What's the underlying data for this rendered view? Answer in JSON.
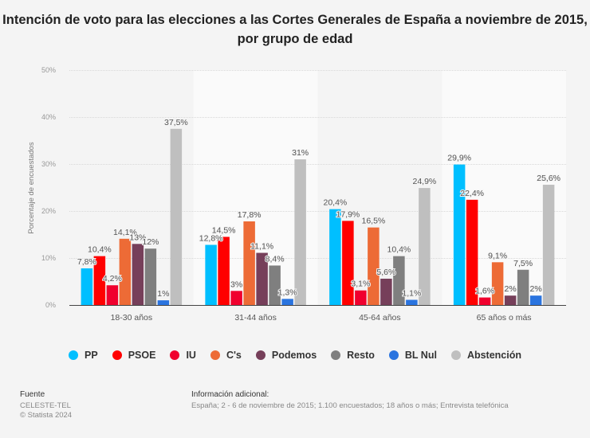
{
  "title": "Intención de voto para las elecciones a las Cortes Generales de España a noviembre de 2015, por grupo de edad",
  "chart_data": {
    "type": "bar",
    "title": "Intención de voto para las elecciones a las Cortes Generales de España a noviembre de 2015, por grupo de edad",
    "xlabel": "",
    "ylabel": "Porcentaje de encuestados",
    "ylim": [
      0,
      50
    ],
    "yticks": [
      0,
      10,
      20,
      30,
      40,
      50
    ],
    "ytick_labels": [
      "0%",
      "10%",
      "20%",
      "30%",
      "40%",
      "50%"
    ],
    "grid": true,
    "legend_position": "bottom",
    "categories": [
      "18-30 años",
      "31-44 años",
      "45-64 años",
      "65 años o más"
    ],
    "series": [
      {
        "name": "PP",
        "color": "#00bfff",
        "values": [
          7.8,
          12.8,
          20.4,
          29.9
        ],
        "labels": [
          "7,8%",
          "12,8%",
          "20,4%",
          "29,9%"
        ]
      },
      {
        "name": "PSOE",
        "color": "#ff0000",
        "values": [
          10.4,
          14.5,
          17.9,
          22.4
        ],
        "labels": [
          "10,4%",
          "14,5%",
          "17,9%",
          "22,4%"
        ]
      },
      {
        "name": "IU",
        "color": "#f0002e",
        "values": [
          4.2,
          3,
          3.1,
          1.6
        ],
        "labels": [
          "4,2%",
          "3%",
          "3,1%",
          "1,6%"
        ]
      },
      {
        "name": "C's",
        "color": "#ed6b36",
        "values": [
          14.1,
          17.8,
          16.5,
          9.1
        ],
        "labels": [
          "14,1%",
          "17,8%",
          "16,5%",
          "9,1%"
        ]
      },
      {
        "name": "Podemos",
        "color": "#763f5a",
        "values": [
          13,
          11.1,
          5.6,
          2
        ],
        "labels": [
          "13%",
          "11,1%",
          "5,6%",
          "2%"
        ]
      },
      {
        "name": "Resto",
        "color": "#7f7f7f",
        "values": [
          12,
          8.4,
          10.4,
          7.5
        ],
        "labels": [
          "12%",
          "8,4%",
          "10,4%",
          "7,5%"
        ]
      },
      {
        "name": "BL Nul",
        "color": "#2a74df",
        "values": [
          1,
          1.3,
          1.1,
          2
        ],
        "labels": [
          "1%",
          "1,3%",
          "1,1%",
          "2%"
        ]
      },
      {
        "name": "Abstención",
        "color": "#bfbfbf",
        "values": [
          37.5,
          31,
          24.9,
          25.6
        ],
        "labels": [
          "37,5%",
          "31%",
          "24,9%",
          "25,6%"
        ]
      }
    ]
  },
  "footer": {
    "source_heading": "Fuente",
    "source": "CELESTE-TEL",
    "copyright": "© Statista 2024",
    "info_heading": "Información adicional:",
    "info": "España; 2 - 6 de noviembre de 2015; 1.100 encuestados; 18 años o más; Entrevista telefónica"
  }
}
